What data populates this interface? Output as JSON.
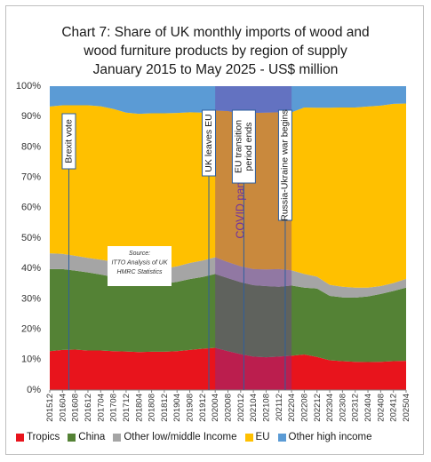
{
  "chart_data": {
    "type": "area",
    "stacked": true,
    "percent": true,
    "title_lines": [
      "Chart 7: Share of UK monthly imports of wood and",
      "wood furniture products by region of supply",
      "January 2015 to May 2025 - US$ million"
    ],
    "ylim": [
      0,
      100
    ],
    "y_ticks": [
      "0%",
      "10%",
      "20%",
      "30%",
      "40%",
      "50%",
      "60%",
      "70%",
      "80%",
      "90%",
      "100%"
    ],
    "x_ticks": [
      "201512",
      "201604",
      "201608",
      "201612",
      "201704",
      "201708",
      "201712",
      "201804",
      "201808",
      "201812",
      "201904",
      "201908",
      "201912",
      "202004",
      "202008",
      "202012",
      "202104",
      "202108",
      "202112",
      "202204",
      "202208",
      "202212",
      "202304",
      "202308",
      "202312",
      "202404",
      "202408",
      "202412",
      "202504"
    ],
    "x": [
      "201512",
      "201604",
      "201608",
      "201612",
      "201704",
      "201708",
      "201712",
      "201804",
      "201808",
      "201812",
      "201904",
      "201908",
      "201912",
      "202004",
      "202008",
      "202012",
      "202104",
      "202108",
      "202112",
      "202204",
      "202208",
      "202212",
      "202304",
      "202308",
      "202312",
      "202404",
      "202408",
      "202412",
      "202504"
    ],
    "series": [
      {
        "name": "Tropics",
        "color": "#e8141c",
        "values": [
          12.8,
          13.2,
          13.3,
          13.0,
          13.0,
          12.8,
          12.7,
          12.5,
          12.6,
          12.6,
          12.8,
          13.2,
          13.6,
          13.9,
          12.8,
          11.8,
          11.0,
          10.8,
          11.0,
          11.3,
          11.7,
          10.9,
          9.8,
          9.5,
          9.3,
          9.2,
          9.3,
          9.5,
          9.6
        ]
      },
      {
        "name": "China",
        "color": "#548235",
        "values": [
          27.0,
          26.6,
          26.0,
          25.7,
          25.0,
          24.4,
          23.2,
          22.3,
          22.0,
          22.4,
          22.8,
          23.3,
          23.6,
          24.3,
          24.0,
          23.7,
          23.5,
          23.4,
          23.0,
          23.1,
          22.0,
          22.5,
          21.2,
          21.0,
          21.1,
          21.6,
          22.3,
          23.1,
          24.1
        ]
      },
      {
        "name": "Other low/middle Income",
        "color": "#a5a5a5",
        "values": [
          5.2,
          5.0,
          4.9,
          4.8,
          4.9,
          5.0,
          5.0,
          5.0,
          5.1,
          5.0,
          5.1,
          5.3,
          5.4,
          5.5,
          5.3,
          5.2,
          5.3,
          5.5,
          5.8,
          5.0,
          4.5,
          3.9,
          3.6,
          3.5,
          3.3,
          2.9,
          2.6,
          2.6,
          2.9
        ]
      },
      {
        "name": "EU",
        "color": "#ffc000",
        "values": [
          48.3,
          48.9,
          49.5,
          50.2,
          50.5,
          50.3,
          50.4,
          51.1,
          51.4,
          51.1,
          50.5,
          49.6,
          48.7,
          48.3,
          49.7,
          50.2,
          51.4,
          51.6,
          51.6,
          52.0,
          54.8,
          55.6,
          58.3,
          59.0,
          59.3,
          59.6,
          59.4,
          59.0,
          57.7
        ]
      },
      {
        "name": "Other high income",
        "color": "#5b9bd5",
        "values": [
          6.7,
          6.3,
          6.3,
          6.3,
          6.6,
          7.5,
          8.7,
          9.1,
          8.9,
          8.9,
          8.8,
          8.6,
          8.7,
          8.0,
          8.2,
          9.1,
          8.8,
          8.7,
          8.6,
          8.6,
          7.0,
          7.1,
          7.1,
          7.0,
          7.0,
          6.7,
          6.4,
          5.8,
          5.7
        ]
      }
    ],
    "covid_band": {
      "from": "202004",
      "to": "202204",
      "label": "COVID pandemic",
      "color": "#7030a0"
    },
    "events": [
      {
        "label": "Brexit vote",
        "x": "201606"
      },
      {
        "label": "UK leaves EU",
        "x": "202002"
      },
      {
        "label": "EU transition period ends",
        "x": "202101"
      },
      {
        "label": "Russia-Ukraine war begins",
        "x": "202202"
      }
    ],
    "event_label_lines": {
      "brexit": [
        "Brexit vote"
      ],
      "leaves": [
        "UK leaves EU"
      ],
      "transition": [
        "EU transition",
        "period ends"
      ],
      "war": [
        "Russia-Ukraine war begins"
      ]
    },
    "source_lines": [
      "Source:",
      "ITTO Analysis of UK",
      "HMRC Statistics"
    ],
    "legend": [
      "Tropics",
      "China",
      "Other low/middle Income",
      "EU",
      "Other high income"
    ]
  }
}
